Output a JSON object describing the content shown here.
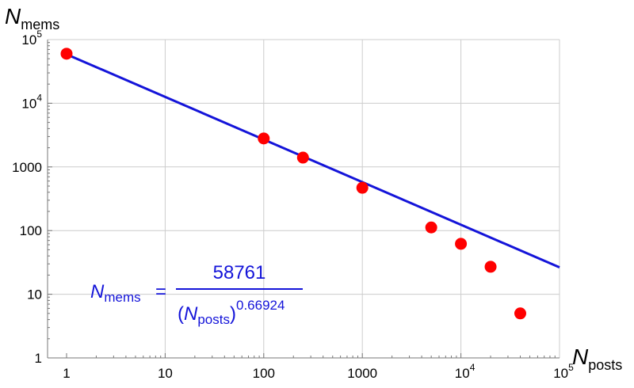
{
  "chart_data": {
    "type": "scatter",
    "title": "",
    "xscale": "log",
    "yscale": "log",
    "xlim": [
      1,
      100000
    ],
    "ylim": [
      1,
      100000
    ],
    "grid": true,
    "xlabel": {
      "main": "N",
      "sub": "posts"
    },
    "ylabel": {
      "main": "N",
      "sub": "mems"
    },
    "x_ticks": [
      {
        "value": 1,
        "label": "1"
      },
      {
        "value": 10,
        "label": "10"
      },
      {
        "value": 100,
        "label": "100"
      },
      {
        "value": 1000,
        "label": "1000"
      },
      {
        "value": 10000,
        "base": "10",
        "exp": "4"
      },
      {
        "value": 100000,
        "base": "10",
        "exp": "5"
      }
    ],
    "y_ticks": [
      {
        "value": 1,
        "label": "1"
      },
      {
        "value": 10,
        "label": "10"
      },
      {
        "value": 100,
        "label": "100"
      },
      {
        "value": 1000,
        "label": "1000"
      },
      {
        "value": 10000,
        "base": "10",
        "exp": "4"
      },
      {
        "value": 100000,
        "base": "10",
        "exp": "5"
      }
    ],
    "points": [
      {
        "x": 1,
        "y": 60000
      },
      {
        "x": 100,
        "y": 2800
      },
      {
        "x": 250,
        "y": 1400
      },
      {
        "x": 1000,
        "y": 470
      },
      {
        "x": 5000,
        "y": 112
      },
      {
        "x": 10000,
        "y": 62
      },
      {
        "x": 20000,
        "y": 27
      },
      {
        "x": 40000,
        "y": 5
      }
    ],
    "fit": {
      "coefficient": 58761,
      "exponent": 0.66924
    },
    "equation": {
      "lhs_main": "N",
      "lhs_sub": "mems",
      "equals": "=",
      "numerator": "58761",
      "den_open": "(",
      "den_main": "N",
      "den_sub": "posts",
      "den_close": ")",
      "den_exp": "0.66924"
    },
    "colors": {
      "points": "#ff0000",
      "fit_line": "#1414d9",
      "grid": "#cccccc",
      "equation": "#1414d9"
    }
  }
}
